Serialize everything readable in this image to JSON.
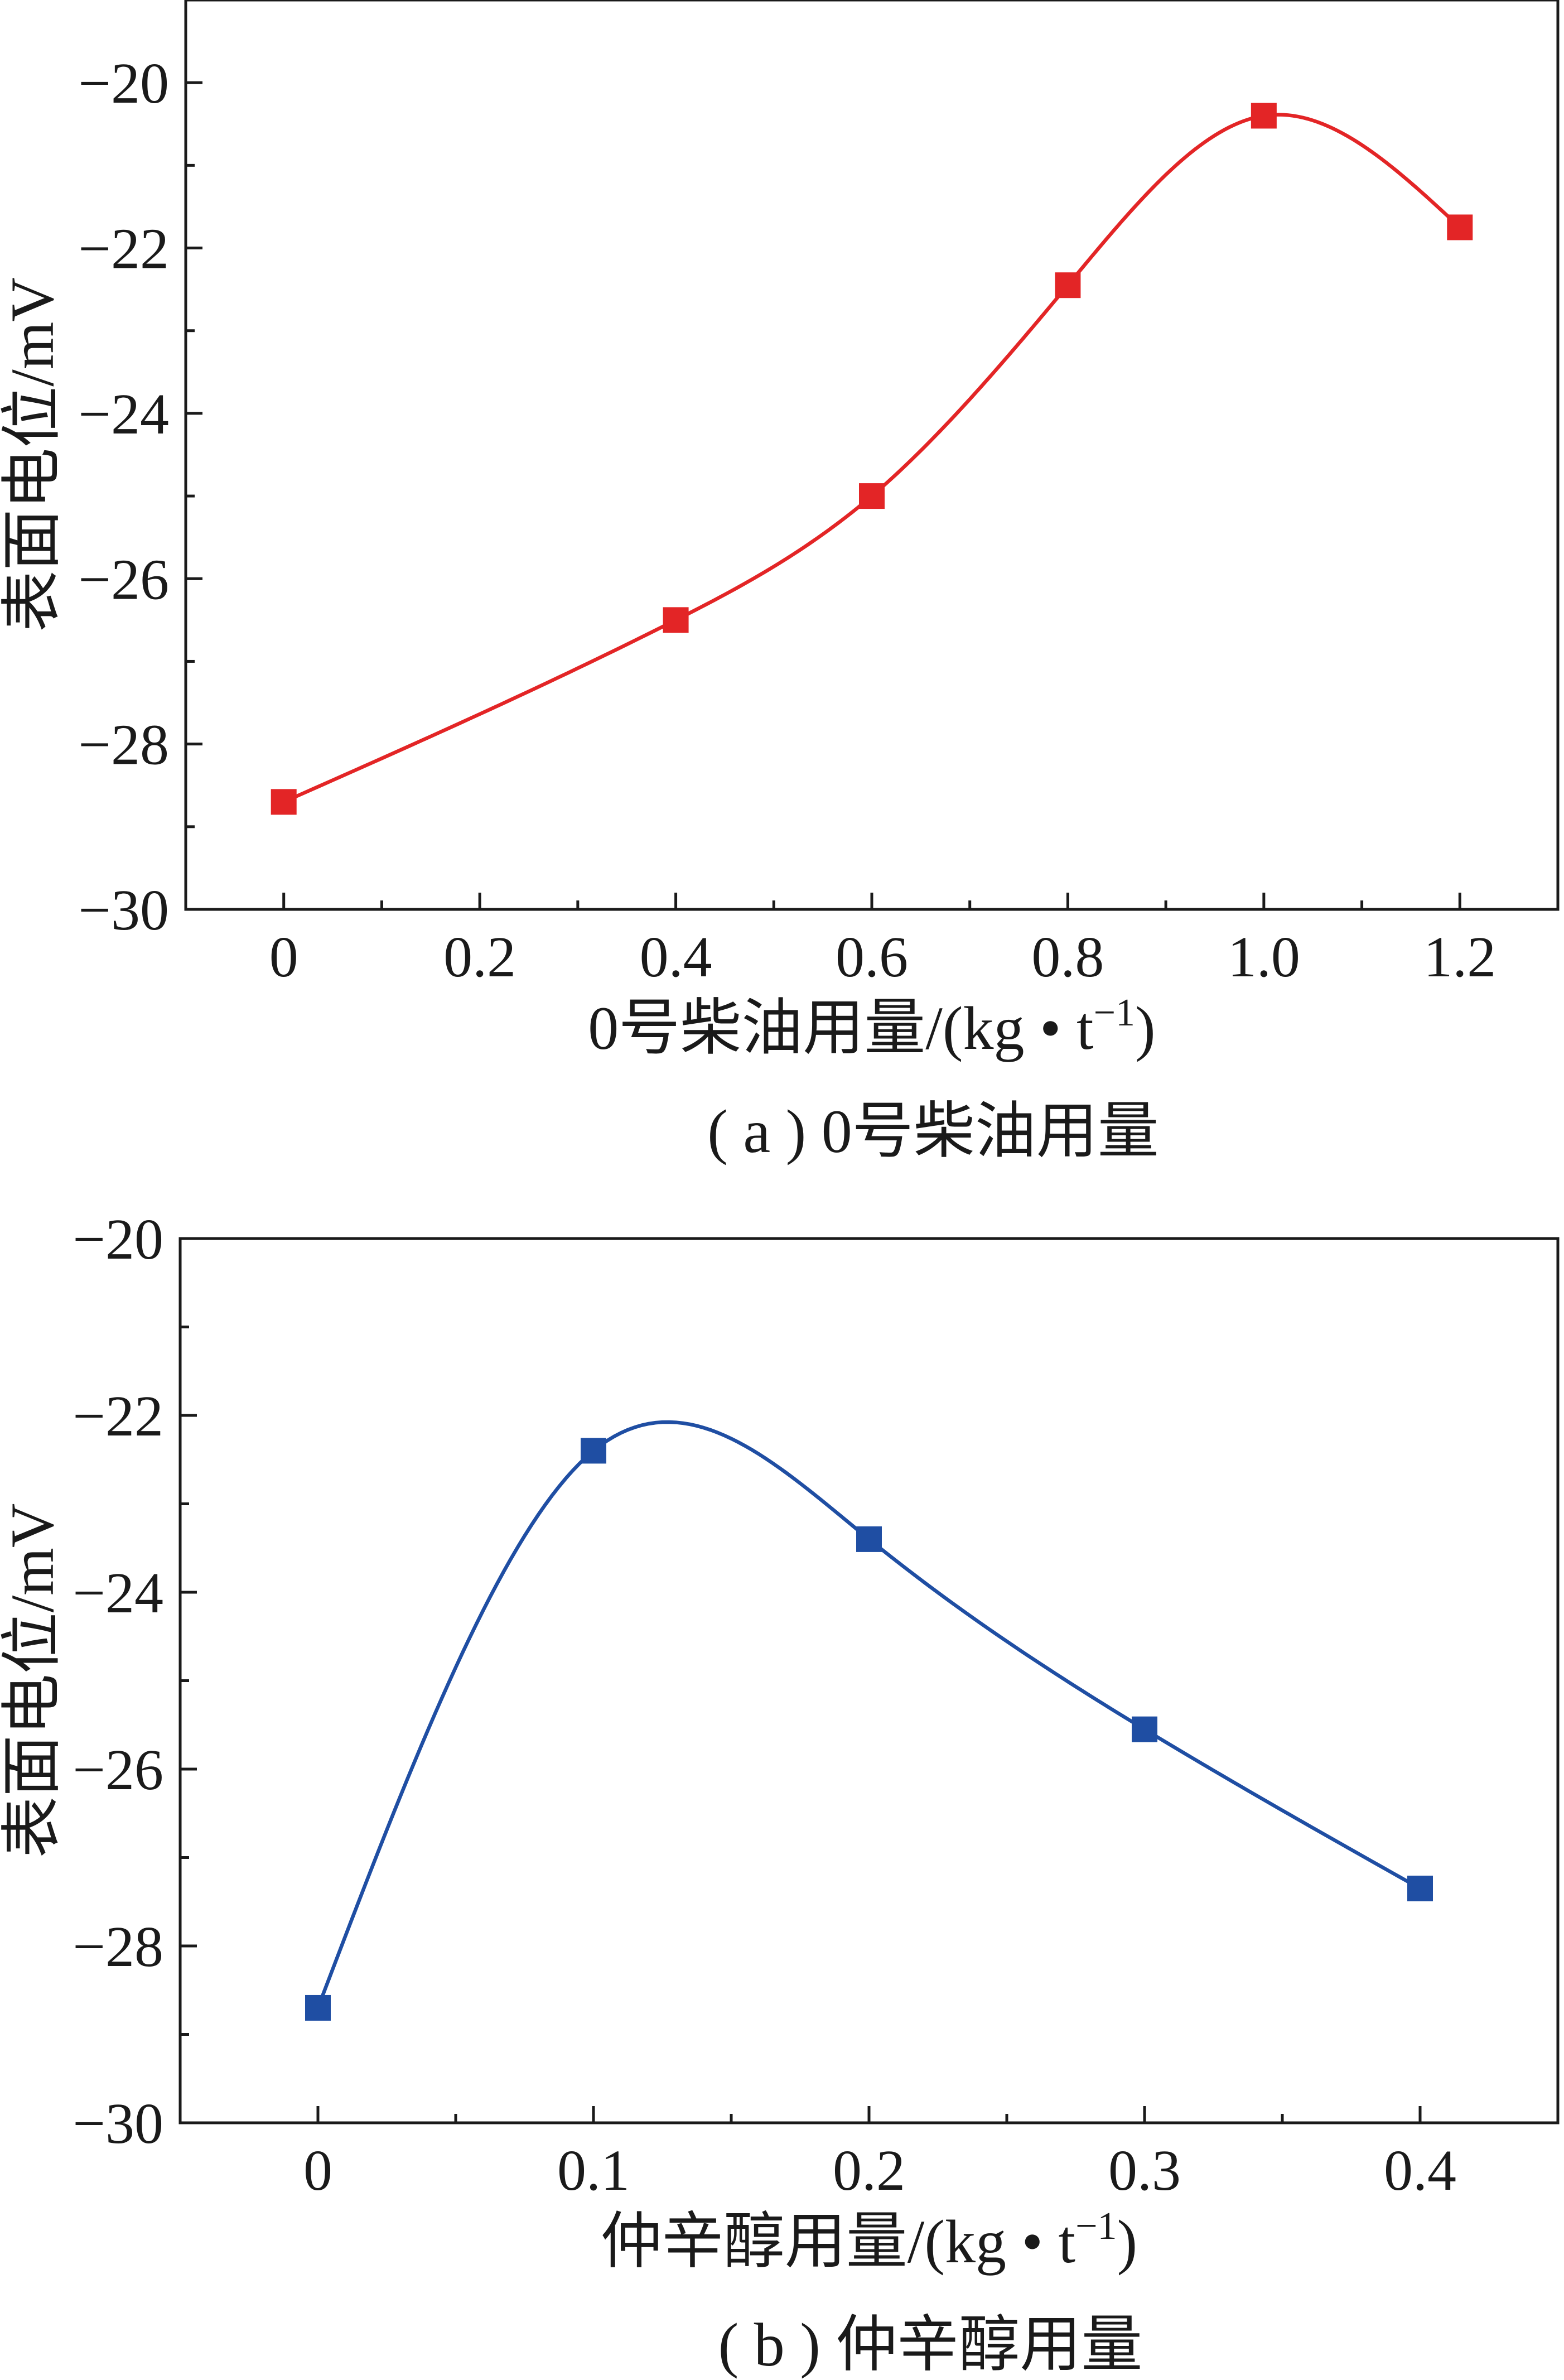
{
  "chart_data": [
    {
      "type": "line",
      "panel": "a",
      "x": [
        0,
        0.4,
        0.6,
        0.8,
        1.0,
        1.2
      ],
      "xticks": [
        "0",
        "0.2",
        "0.4",
        "0.6",
        "0.8",
        "1.0",
        "1.2"
      ],
      "xtick_values": [
        0,
        0.2,
        0.4,
        0.6,
        0.8,
        1.0,
        1.2
      ],
      "xlim": [
        -0.1,
        1.3
      ],
      "ylim": [
        -30,
        -19
      ],
      "yticks": [
        -20,
        -22,
        -24,
        -26,
        -28,
        -30
      ],
      "ytick_labels": [
        "−20",
        "−22",
        "−24",
        "−26",
        "−28",
        "−30"
      ],
      "series": [
        {
          "values": [
            -28.7,
            -26.5,
            -25.0,
            -22.45,
            -20.4,
            -21.75
          ],
          "color": "#e32526"
        }
      ],
      "xlabel": "0号柴油用量/(kg • t",
      "xlabel_sup": "−1",
      "xlabel_end": ")",
      "ylabel": "表面电位/mV",
      "caption": "( a ) 0号柴油用量",
      "grid": false,
      "marker": "square"
    },
    {
      "type": "line",
      "panel": "b",
      "x": [
        0,
        0.1,
        0.2,
        0.3,
        0.4
      ],
      "xticks": [
        "0",
        "0.1",
        "0.2",
        "0.3",
        "0.4"
      ],
      "xtick_values": [
        0,
        0.1,
        0.2,
        0.3,
        0.4
      ],
      "xlim": [
        -0.05,
        0.45
      ],
      "ylim": [
        -30,
        -20
      ],
      "yticks": [
        -20,
        -22,
        -24,
        -26,
        -28,
        -30
      ],
      "ytick_labels": [
        "−20",
        "−22",
        "−24",
        "−26",
        "−28",
        "−30"
      ],
      "series": [
        {
          "values": [
            -28.7,
            -22.4,
            -23.4,
            -25.55,
            -27.35
          ],
          "color": "#1f4ea3"
        }
      ],
      "xlabel": "仲辛醇用量/(kg • t",
      "xlabel_sup": "−1",
      "xlabel_end": ")",
      "ylabel": "表面电位/mV",
      "caption": "( b ) 仲辛醇用量",
      "grid": false,
      "marker": "square"
    }
  ]
}
